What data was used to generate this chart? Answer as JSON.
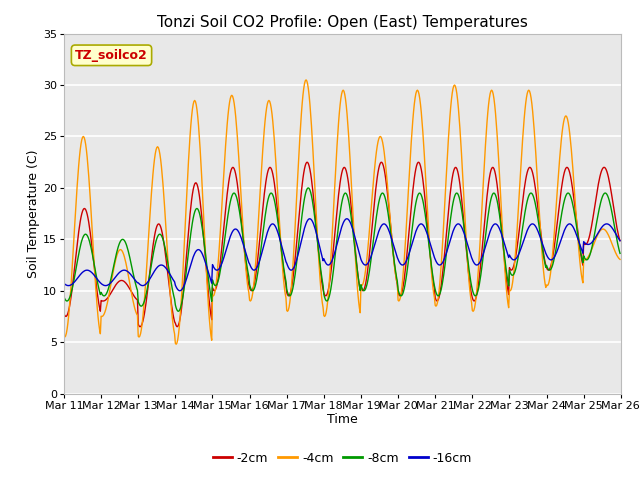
{
  "title": "Tonzi Soil CO2 Profile: Open (East) Temperatures",
  "xlabel": "Time",
  "ylabel": "Soil Temperature (C)",
  "ylim": [
    0,
    35
  ],
  "xtick_labels": [
    "Mar 11",
    "Mar 12",
    "Mar 13",
    "Mar 14",
    "Mar 15",
    "Mar 16",
    "Mar 17",
    "Mar 18",
    "Mar 19",
    "Mar 20",
    "Mar 21",
    "Mar 22",
    "Mar 23",
    "Mar 24",
    "Mar 25",
    "Mar 26"
  ],
  "legend_label": "TZ_soilco2",
  "series_labels": [
    "-2cm",
    "-4cm",
    "-8cm",
    "-16cm"
  ],
  "series_colors": [
    "#cc0000",
    "#ff9900",
    "#009900",
    "#0000cc"
  ],
  "background_color": "#e8e8e8",
  "plot_bg": "#ffffff",
  "title_fontsize": 11,
  "axis_fontsize": 9,
  "tick_fontsize": 8,
  "legend_box_color": "#ffffcc",
  "legend_text_color": "#cc0000",
  "peaks_4cm": [
    25,
    14,
    24,
    28.5,
    29,
    28.5,
    30.5,
    29.5,
    25,
    29.5,
    30,
    29.5,
    29.5,
    27,
    16
  ],
  "valleys_4cm": [
    5.5,
    7.5,
    5.5,
    4.8,
    9.5,
    9,
    8,
    7.5,
    10.5,
    9,
    8.5,
    8,
    10,
    10.5,
    13
  ],
  "peaks_2cm": [
    18,
    11,
    16.5,
    20.5,
    22,
    22,
    22.5,
    22,
    22.5,
    22.5,
    22,
    22,
    22,
    22,
    22
  ],
  "valleys_2cm": [
    7.5,
    9,
    6.5,
    6.5,
    10,
    10,
    9.5,
    9.5,
    10,
    9.5,
    9,
    9,
    12,
    12,
    14.5
  ],
  "peaks_8cm": [
    15.5,
    15,
    15.5,
    18,
    19.5,
    19.5,
    20,
    19.5,
    19.5,
    19.5,
    19.5,
    19.5,
    19.5,
    19.5,
    19.5
  ],
  "valleys_8cm": [
    9,
    9.5,
    8.5,
    8,
    10.5,
    10,
    9.5,
    9,
    10,
    9.5,
    9.5,
    9.5,
    11.5,
    12,
    13
  ],
  "peaks_16cm": [
    12,
    12,
    12.5,
    14,
    16,
    16.5,
    17,
    17,
    16.5,
    16.5,
    16.5,
    16.5,
    16.5,
    16.5,
    16.5
  ],
  "valleys_16cm": [
    10.5,
    10.5,
    10.5,
    10,
    12,
    12,
    12,
    12.5,
    12.5,
    12.5,
    12.5,
    12.5,
    13,
    13,
    14.5
  ]
}
